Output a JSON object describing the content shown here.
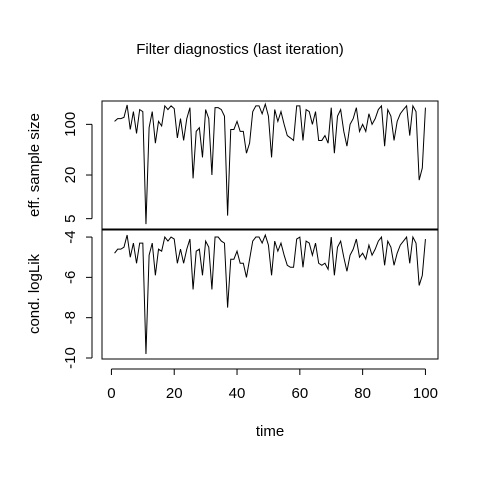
{
  "title": "Filter diagnostics (last iteration)",
  "chart_data": [
    {
      "type": "line",
      "ylabel": "eff. sample size",
      "scale": "log",
      "yticks": [
        5,
        20,
        100
      ],
      "ylim": [
        3.6,
        210
      ],
      "x": [
        1,
        2,
        3,
        4,
        5,
        6,
        7,
        8,
        9,
        10,
        11,
        12,
        13,
        14,
        15,
        16,
        17,
        18,
        19,
        20,
        21,
        22,
        23,
        24,
        25,
        26,
        27,
        28,
        29,
        30,
        31,
        32,
        33,
        34,
        35,
        36,
        37,
        38,
        39,
        40,
        41,
        42,
        43,
        44,
        45,
        46,
        47,
        48,
        49,
        50,
        51,
        52,
        53,
        54,
        55,
        56,
        57,
        58,
        59,
        60,
        61,
        62,
        63,
        64,
        65,
        66,
        67,
        68,
        69,
        70,
        71,
        72,
        73,
        74,
        75,
        76,
        77,
        78,
        79,
        80,
        81,
        82,
        83,
        84,
        85,
        86,
        87,
        88,
        89,
        90,
        91,
        92,
        93,
        94,
        95,
        96,
        97,
        98,
        99,
        100
      ],
      "values": [
        110,
        120,
        120,
        125,
        185,
        85,
        150,
        75,
        160,
        150,
        4.2,
        90,
        150,
        55,
        110,
        95,
        180,
        160,
        180,
        165,
        65,
        120,
        60,
        120,
        170,
        18,
        80,
        90,
        35,
        160,
        120,
        20,
        170,
        170,
        160,
        130,
        5.5,
        85,
        85,
        110,
        80,
        80,
        40,
        55,
        150,
        180,
        180,
        140,
        190,
        130,
        35,
        160,
        110,
        150,
        100,
        70,
        65,
        60,
        180,
        180,
        60,
        160,
        150,
        100,
        150,
        60,
        60,
        70,
        55,
        170,
        40,
        130,
        160,
        80,
        50,
        100,
        120,
        170,
        80,
        100,
        80,
        140,
        100,
        120,
        160,
        180,
        50,
        160,
        130,
        60,
        110,
        140,
        160,
        180,
        70,
        180,
        150,
        17,
        25,
        170
      ]
    },
    {
      "type": "line",
      "ylabel": "cond. logLik",
      "yticks": [
        -10,
        -8,
        -6,
        -4
      ],
      "ylim": [
        -10.05,
        -3.65
      ],
      "x": [
        1,
        2,
        3,
        4,
        5,
        6,
        7,
        8,
        9,
        10,
        11,
        12,
        13,
        14,
        15,
        16,
        17,
        18,
        19,
        20,
        21,
        22,
        23,
        24,
        25,
        26,
        27,
        28,
        29,
        30,
        31,
        32,
        33,
        34,
        35,
        36,
        37,
        38,
        39,
        40,
        41,
        42,
        43,
        44,
        45,
        46,
        47,
        48,
        49,
        50,
        51,
        52,
        53,
        54,
        55,
        56,
        57,
        58,
        59,
        60,
        61,
        62,
        63,
        64,
        65,
        66,
        67,
        68,
        69,
        70,
        71,
        72,
        73,
        74,
        75,
        76,
        77,
        78,
        79,
        80,
        81,
        82,
        83,
        84,
        85,
        86,
        87,
        88,
        89,
        90,
        91,
        92,
        93,
        94,
        95,
        96,
        97,
        98,
        99,
        100
      ],
      "values": [
        -4.8,
        -4.6,
        -4.6,
        -4.5,
        -3.9,
        -5.0,
        -4.3,
        -5.3,
        -4.3,
        -4.3,
        -9.8,
        -4.9,
        -4.3,
        -5.9,
        -4.6,
        -4.7,
        -4.0,
        -4.2,
        -4.0,
        -4.1,
        -5.3,
        -4.6,
        -5.3,
        -4.6,
        -4.1,
        -6.6,
        -4.7,
        -4.6,
        -5.9,
        -4.2,
        -4.5,
        -6.6,
        -4.0,
        -4.0,
        -4.2,
        -4.3,
        -7.5,
        -5.1,
        -5.1,
        -4.7,
        -5.3,
        -5.3,
        -6.0,
        -5.1,
        -4.2,
        -4.0,
        -4.0,
        -4.3,
        -3.9,
        -4.4,
        -5.9,
        -4.2,
        -4.7,
        -4.3,
        -4.9,
        -5.4,
        -5.5,
        -5.5,
        -4.1,
        -4.0,
        -5.5,
        -4.2,
        -4.3,
        -4.9,
        -4.3,
        -5.3,
        -5.4,
        -5.3,
        -5.6,
        -4.0,
        -5.9,
        -4.5,
        -4.2,
        -5.0,
        -5.7,
        -4.9,
        -4.6,
        -4.1,
        -5.0,
        -4.8,
        -5.1,
        -4.4,
        -4.9,
        -4.6,
        -4.2,
        -4.0,
        -5.4,
        -4.2,
        -4.5,
        -5.4,
        -4.8,
        -4.4,
        -4.2,
        -4.0,
        -5.3,
        -4.0,
        -4.3,
        -6.4,
        -5.9,
        -4.1
      ]
    }
  ],
  "x_axis": {
    "label": "time",
    "ticks": [
      0,
      20,
      40,
      60,
      80,
      100
    ],
    "xlim": [
      -3,
      104
    ]
  }
}
